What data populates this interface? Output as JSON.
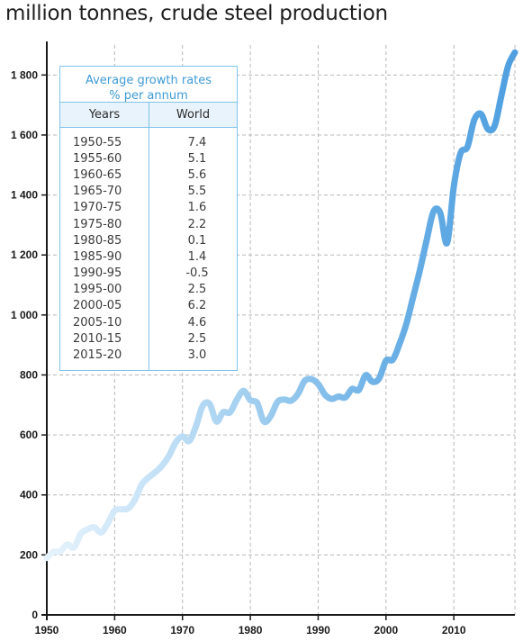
{
  "title": "million tonnes, crude steel production",
  "table": {
    "title_line1": "Average growth rates",
    "title_line2": "% per annum",
    "col_years": "Years",
    "col_world": "World",
    "rows": [
      {
        "years": "1950-55",
        "world": "7.4"
      },
      {
        "years": "1955-60",
        "world": "5.1"
      },
      {
        "years": "1960-65",
        "world": "5.6"
      },
      {
        "years": "1965-70",
        "world": "5.5"
      },
      {
        "years": "1970-75",
        "world": "1.6"
      },
      {
        "years": "1975-80",
        "world": "2.2"
      },
      {
        "years": "1980-85",
        "world": "0.1"
      },
      {
        "years": "1985-90",
        "world": "1.4"
      },
      {
        "years": "1990-95",
        "world": "-0.5"
      },
      {
        "years": "1995-00",
        "world": "2.5"
      },
      {
        "years": "2000-05",
        "world": "6.2"
      },
      {
        "years": "2005-10",
        "world": "4.6"
      },
      {
        "years": "2010-15",
        "world": "2.5"
      },
      {
        "years": "2015-20",
        "world": "3.0"
      }
    ]
  },
  "chart_data": {
    "type": "line",
    "title": "million tonnes, crude steel production",
    "xlim": [
      1950,
      2019
    ],
    "ylim": [
      0,
      1900
    ],
    "x_ticks": [
      1950,
      1960,
      1970,
      1980,
      1990,
      2000,
      2010
    ],
    "y_ticks": [
      0,
      200,
      400,
      600,
      800,
      1000,
      1200,
      1400,
      1600,
      1800
    ],
    "y_tick_labels": [
      "0",
      "200",
      "400",
      "600",
      "800",
      "1 000",
      "1 200",
      "1 400",
      "1 600",
      "1 800"
    ],
    "grid": true,
    "series": [
      {
        "x": [
          1950,
          1951,
          1952,
          1953,
          1954,
          1955,
          1956,
          1957,
          1958,
          1959,
          1960,
          1961,
          1962,
          1963,
          1964,
          1965,
          1966,
          1967,
          1968,
          1969,
          1970,
          1971,
          1972,
          1973,
          1974,
          1975,
          1976,
          1977,
          1978,
          1979,
          1980,
          1981,
          1982,
          1983,
          1984,
          1985,
          1986,
          1987,
          1988,
          1989,
          1990,
          1991,
          1992,
          1993,
          1994,
          1995,
          1996,
          1997,
          1998,
          1999,
          2000,
          2001,
          2002,
          2003,
          2004,
          2005,
          2006,
          2007,
          2008,
          2009,
          2010,
          2011,
          2012,
          2013,
          2014,
          2015,
          2016,
          2017,
          2018,
          2019
        ],
        "y": [
          190,
          210,
          212,
          235,
          225,
          270,
          285,
          292,
          275,
          306,
          348,
          352,
          355,
          385,
          435,
          458,
          476,
          498,
          530,
          575,
          595,
          580,
          630,
          698,
          703,
          645,
          676,
          675,
          717,
          747,
          716,
          707,
          645,
          663,
          710,
          718,
          714,
          736,
          780,
          786,
          770,
          734,
          720,
          728,
          725,
          753,
          750,
          799,
          777,
          789,
          848,
          851,
          904,
          970,
          1060,
          1150,
          1250,
          1345,
          1340,
          1240,
          1430,
          1540,
          1560,
          1650,
          1670,
          1620,
          1630,
          1730,
          1830,
          1875
        ]
      }
    ]
  }
}
